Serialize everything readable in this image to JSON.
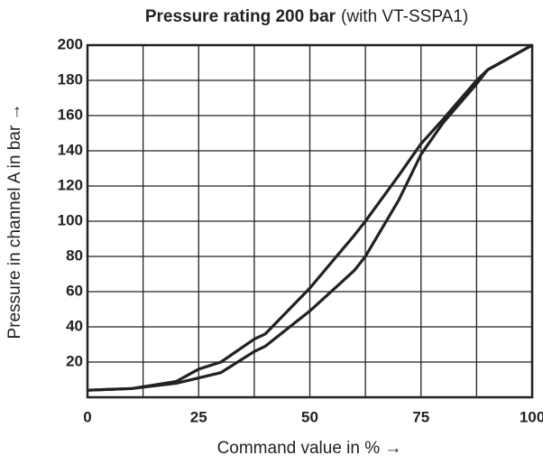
{
  "chart_data": {
    "type": "line",
    "title": "Pressure rating 200 bar",
    "subtitle": "(with VT-SSPA1)",
    "x_label": "Command value in % →",
    "y_label": "Pressure in channel A in bar →",
    "x": [
      0,
      10,
      20,
      25,
      30,
      37.5,
      40,
      50,
      60,
      62.5,
      70,
      75,
      80,
      87.5,
      90,
      100
    ],
    "series": [
      {
        "color": "#222222",
        "values": [
          4,
          5,
          9,
          16,
          20,
          33,
          36,
          62,
          92,
          100,
          126,
          144,
          158,
          180,
          186,
          200
        ]
      },
      {
        "color": "#222222",
        "values": [
          4,
          5,
          8,
          11,
          14,
          26,
          29,
          49,
          72,
          80,
          112,
          138,
          156,
          178,
          186,
          200
        ]
      }
    ],
    "xlim": [
      0,
      100
    ],
    "xticks": [
      0,
      25,
      50,
      75,
      100
    ],
    "xminor": [
      12.5,
      37.5,
      62.5,
      87.5
    ],
    "ylim": [
      0,
      200
    ],
    "yticks": [
      20,
      40,
      60,
      80,
      100,
      120,
      140,
      160,
      180,
      200
    ],
    "grid": true
  }
}
